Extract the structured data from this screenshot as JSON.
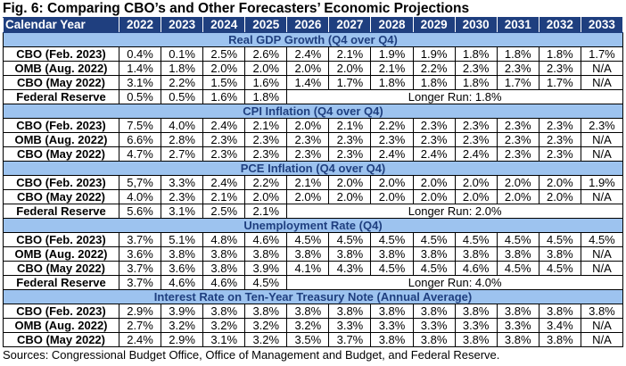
{
  "title": "Fig. 6: Comparing CBO’s and Other Forecasters’ Economic Projections",
  "header": {
    "label": "Calendar Year",
    "years": [
      "2022",
      "2023",
      "2024",
      "2025",
      "2026",
      "2027",
      "2028",
      "2029",
      "2030",
      "2031",
      "2032",
      "2033"
    ]
  },
  "sections": [
    {
      "title": "Real GDP Growth (Q4 over Q4)",
      "rows": [
        {
          "label": "CBO (Feb. 2023)",
          "values": [
            "0.4%",
            "0.1%",
            "2.5%",
            "2.6%",
            "2.4%",
            "2.1%",
            "1.9%",
            "1.9%",
            "1.8%",
            "1.8%",
            "1.8%",
            "1.7%"
          ]
        },
        {
          "label": "OMB (Aug. 2022)",
          "values": [
            "1.4%",
            "1.8%",
            "2.0%",
            "2.0%",
            "2.0%",
            "2.0%",
            "2.1%",
            "2.2%",
            "2.3%",
            "2.3%",
            "2.3%",
            "N/A"
          ]
        },
        {
          "label": "CBO (May 2022)",
          "values": [
            "3.1%",
            "2.2%",
            "1.5%",
            "1.6%",
            "1.4%",
            "1.7%",
            "1.8%",
            "1.8%",
            "1.8%",
            "1.7%",
            "1.7%",
            "N/A"
          ]
        },
        {
          "label": "Federal Reserve",
          "values": [
            "0.5%",
            "0.5%",
            "1.6%",
            "1.8%"
          ],
          "longer_run": "Longer Run: 1.8%"
        }
      ]
    },
    {
      "title": "CPI Inflation (Q4 over Q4)",
      "rows": [
        {
          "label": "CBO (Feb. 2023)",
          "values": [
            "7.5%",
            "4.0%",
            "2.4%",
            "2.1%",
            "2.0%",
            "2.1%",
            "2.2%",
            "2.3%",
            "2.3%",
            "2.3%",
            "2.3%",
            "2.3%"
          ]
        },
        {
          "label": "OMB (Aug. 2022)",
          "values": [
            "6.6%",
            "2.8%",
            "2.3%",
            "2.3%",
            "2.3%",
            "2.3%",
            "2.3%",
            "2.3%",
            "2.3%",
            "2.3%",
            "2.3%",
            "N/A"
          ]
        },
        {
          "label": "CBO (May 2022)",
          "values": [
            "4.7%",
            "2.7%",
            "2.3%",
            "2.3%",
            "2.3%",
            "2.3%",
            "2.4%",
            "2.4%",
            "2.4%",
            "2.3%",
            "2.3%",
            "N/A"
          ]
        }
      ]
    },
    {
      "title": "PCE Inflation (Q4 over Q4)",
      "rows": [
        {
          "label": "CBO (Feb. 2023)",
          "values": [
            "5,7%",
            "3.3%",
            "2.4%",
            "2.2%",
            "2.1%",
            "2.0%",
            "2.0%",
            "2.0%",
            "2.0%",
            "2.0%",
            "2.0%",
            "1.9%"
          ]
        },
        {
          "label": "CBO (May 2022)",
          "values": [
            "4.0%",
            "2.3%",
            "2.1%",
            "2.0%",
            "2.0%",
            "2.0%",
            "2.0%",
            "2.0%",
            "2.0%",
            "2.0%",
            "2.0%",
            "N/A"
          ]
        },
        {
          "label": "Federal Reserve",
          "values": [
            "5.6%",
            "3.1%",
            "2.5%",
            "2.1%"
          ],
          "longer_run": "Longer Run: 2.0%"
        }
      ]
    },
    {
      "title": "Unemployment Rate (Q4)",
      "rows": [
        {
          "label": "CBO (Feb. 2023)",
          "values": [
            "3.7%",
            "5.1%",
            "4.8%",
            "4.6%",
            "4.5%",
            "4.5%",
            "4.5%",
            "4.5%",
            "4.5%",
            "4.5%",
            "4.5%",
            "4.5%"
          ]
        },
        {
          "label": "OMB (Aug. 2022)",
          "values": [
            "3.6%",
            "3.8%",
            "3.8%",
            "3.8%",
            "3.8%",
            "3.8%",
            "3.8%",
            "3.8%",
            "3.8%",
            "3.8%",
            "3.8%",
            "N/A"
          ]
        },
        {
          "label": "CBO (May 2022)",
          "values": [
            "3.7%",
            "3.6%",
            "3.8%",
            "3.9%",
            "4.1%",
            "4.3%",
            "4.5%",
            "4.5%",
            "4.6%",
            "4.5%",
            "4.5%",
            "N/A"
          ]
        },
        {
          "label": "Federal Reserve",
          "values": [
            "3.7%",
            "4.6%",
            "4.6%",
            "4.5%"
          ],
          "longer_run": "Longer Run: 4.0%"
        }
      ]
    },
    {
      "title": "Interest Rate on Ten-Year Treasury Note (Annual Average)",
      "rows": [
        {
          "label": "CBO (Feb. 2023)",
          "values": [
            "2.9%",
            "3.9%",
            "3.8%",
            "3.8%",
            "3.8%",
            "3.8%",
            "3.8%",
            "3.8%",
            "3.8%",
            "3.8%",
            "3.8%",
            "3.8%"
          ]
        },
        {
          "label": "OMB (Aug. 2022)",
          "values": [
            "2.7%",
            "3.2%",
            "3.2%",
            "3.2%",
            "3.2%",
            "3.3%",
            "3.3%",
            "3.3%",
            "3.3%",
            "3.3%",
            "3.4%",
            "N/A"
          ]
        },
        {
          "label": "CBO (May 2022)",
          "values": [
            "2.4%",
            "2.9%",
            "3.1%",
            "3.2%",
            "3.5%",
            "3.7%",
            "3.8%",
            "3.8%",
            "3.8%",
            "3.8%",
            "3.8%",
            "N/A"
          ]
        }
      ]
    }
  ],
  "sources": "Sources: Congressional Budget Office, Office of Management and Budget, and Federal Reserve.",
  "colors": {
    "header_bg": "#1f3f7f",
    "section_bg": "#9dc3ef",
    "section_text": "#1f3f7f"
  }
}
